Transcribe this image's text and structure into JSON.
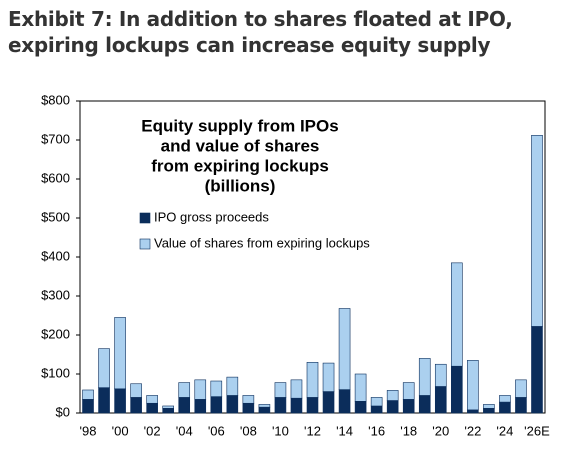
{
  "chart_data": {
    "type": "stacked_bar",
    "title": "Exhibit 7: In addition to shares floated at IPO, expiring lockups can increase equity supply",
    "subtitle_lines": [
      "Equity supply from IPOs",
      "and value of shares",
      "from expiring lockups",
      "(billions)"
    ],
    "categories": [
      "'98",
      null,
      "'00",
      null,
      "'02",
      null,
      "'04",
      null,
      "'06",
      null,
      "'08",
      null,
      "'10",
      null,
      "'12",
      null,
      "'14",
      null,
      "'16",
      null,
      "'18",
      null,
      "'20",
      null,
      "'22",
      null,
      "'24",
      null,
      "'26E"
    ],
    "series": [
      {
        "name": "IPO gross proceeds",
        "color": "#0b2d5b",
        "values": [
          35,
          65,
          62,
          40,
          25,
          12,
          40,
          35,
          42,
          45,
          25,
          15,
          40,
          38,
          40,
          55,
          60,
          30,
          18,
          32,
          35,
          45,
          68,
          120,
          8,
          12,
          28,
          40,
          222
        ]
      },
      {
        "name": "Value of shares from expiring lockups",
        "color": "#abd0ef",
        "values": [
          24,
          100,
          183,
          35,
          20,
          6,
          38,
          50,
          40,
          47,
          20,
          7,
          38,
          47,
          90,
          73,
          208,
          70,
          22,
          26,
          43,
          95,
          57,
          265,
          127,
          10,
          17,
          45,
          490
        ]
      }
    ],
    "ylim": [
      0,
      800
    ],
    "yticks": [
      {
        "value": 0,
        "label": "$0"
      },
      {
        "value": 100,
        "label": "$100"
      },
      {
        "value": 200,
        "label": "$200"
      },
      {
        "value": 300,
        "label": "$300"
      },
      {
        "value": 400,
        "label": "$400"
      },
      {
        "value": 500,
        "label": "$500"
      },
      {
        "value": 600,
        "label": "$600"
      },
      {
        "value": 700,
        "label": "$700"
      },
      {
        "value": 800,
        "label": "$800"
      }
    ],
    "grid": false
  }
}
